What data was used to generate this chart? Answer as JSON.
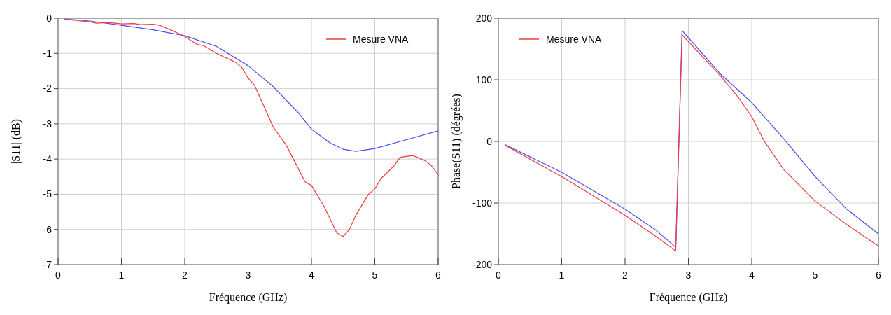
{
  "chart_data": [
    {
      "type": "line",
      "xlabel": "Fréquence (GHz)",
      "ylabel": "|S11| (dB)",
      "xlim": [
        0,
        6
      ],
      "ylim": [
        -7,
        0
      ],
      "xticks": [
        0,
        1,
        2,
        3,
        4,
        5,
        6
      ],
      "yticks": [
        -7,
        -6,
        -5,
        -4,
        -3,
        -2,
        -1,
        0
      ],
      "grid": true,
      "legend": "top right",
      "series": [
        {
          "color": "#4c4cf0",
          "x": [
            0.1,
            0.5,
            1,
            1.5,
            2,
            2.5,
            3,
            3.4,
            3.8,
            4,
            4.3,
            4.5,
            4.7,
            5,
            5.5,
            6
          ],
          "values": [
            -0.02,
            -0.08,
            -0.2,
            -0.33,
            -0.5,
            -0.8,
            -1.35,
            -1.95,
            -2.7,
            -3.15,
            -3.55,
            -3.72,
            -3.78,
            -3.7,
            -3.45,
            -3.2
          ]
        },
        {
          "name": "Mesure VNA",
          "color": "#f03c3c",
          "x": [
            0.1,
            0.3,
            0.5,
            0.6,
            0.8,
            1,
            1.2,
            1.3,
            1.5,
            1.6,
            1.8,
            2,
            2.2,
            2.3,
            2.5,
            2.8,
            2.9,
            3,
            3.1,
            3.2,
            3.4,
            3.6,
            3.7,
            3.9,
            4,
            4.2,
            4.4,
            4.5,
            4.6,
            4.7,
            4.9,
            5,
            5.1,
            5.3,
            5.4,
            5.6,
            5.8,
            5.9,
            6
          ],
          "values": [
            -0.03,
            -0.07,
            -0.1,
            -0.14,
            -0.12,
            -0.16,
            -0.15,
            -0.18,
            -0.17,
            -0.2,
            -0.35,
            -0.52,
            -0.75,
            -0.78,
            -1,
            -1.25,
            -1.4,
            -1.7,
            -1.9,
            -2.3,
            -3.1,
            -3.6,
            -3.95,
            -4.65,
            -4.75,
            -5.35,
            -6.1,
            -6.2,
            -6,
            -5.6,
            -5,
            -4.85,
            -4.55,
            -4.2,
            -3.95,
            -3.9,
            -4.05,
            -4.2,
            -4.45
          ]
        }
      ]
    },
    {
      "type": "line",
      "xlabel": "Fréquence (GHz)",
      "ylabel": "Phase(S11) (dégrées)",
      "xlim": [
        0,
        6
      ],
      "ylim": [
        -200,
        200
      ],
      "xticks": [
        0,
        1,
        2,
        3,
        4,
        5,
        6
      ],
      "yticks": [
        -200,
        -100,
        0,
        100,
        200
      ],
      "grid": true,
      "legend": "top left",
      "series": [
        {
          "color": "#4c4cf0",
          "x": [
            0.1,
            1,
            2,
            2.5,
            2.8,
            2.9,
            3.5,
            4,
            4.5,
            5,
            5.5,
            6
          ],
          "values": [
            -5,
            -50,
            -110,
            -145,
            -172,
            180,
            110,
            63,
            5,
            -57,
            -110,
            -150
          ]
        },
        {
          "name": "Mesure VNA",
          "color": "#f03c3c",
          "x": [
            0.1,
            1,
            2,
            2.5,
            2.8,
            2.9,
            3.5,
            3.8,
            4,
            4.2,
            4.5,
            5,
            5.5,
            6
          ],
          "values": [
            -6,
            -57,
            -120,
            -155,
            -178,
            173,
            107,
            70,
            40,
            0,
            -45,
            -97,
            -135,
            -170
          ]
        }
      ]
    }
  ]
}
